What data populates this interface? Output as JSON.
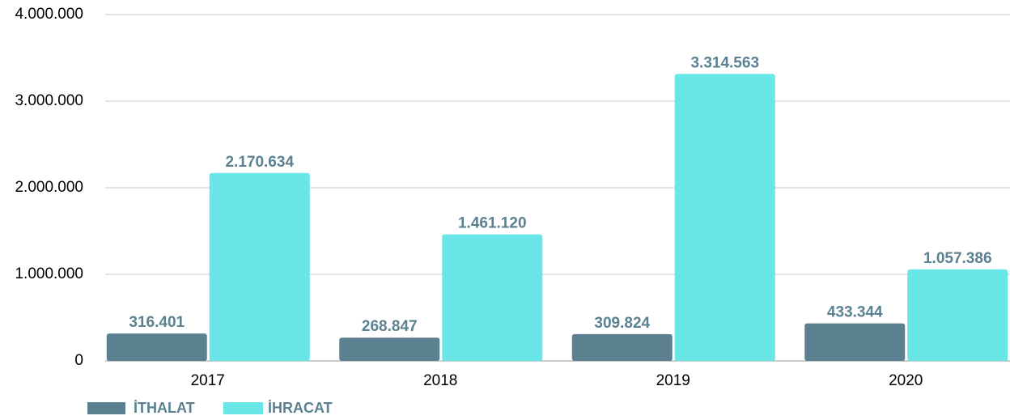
{
  "chart_data": {
    "type": "bar",
    "categories": [
      "2017",
      "2018",
      "2019",
      "2020"
    ],
    "series": [
      {
        "name": "İTHALAT",
        "color": "#5b8191",
        "values": [
          316401,
          268847,
          309824,
          433344
        ],
        "value_labels": [
          "316.401",
          "268.847",
          "309.824",
          "433.344"
        ]
      },
      {
        "name": "İHRACAT",
        "color": "#6ae5e8",
        "values": [
          2170634,
          1461120,
          3314563,
          1057386
        ],
        "value_labels": [
          "2.170.634",
          "1.461.120",
          "3.314.563",
          "1.057.386"
        ]
      }
    ],
    "ylim": [
      0,
      4000000
    ],
    "yticks": [
      0,
      {
        "value": 1000000,
        "label": "1.000.000"
      },
      {
        "value": 2000000,
        "label": "2.000.000"
      },
      {
        "value": 3000000,
        "label": "3.000.000"
      },
      {
        "value": 4000000,
        "label": "4.000.000"
      }
    ],
    "grid": true,
    "legend": "bottom"
  }
}
